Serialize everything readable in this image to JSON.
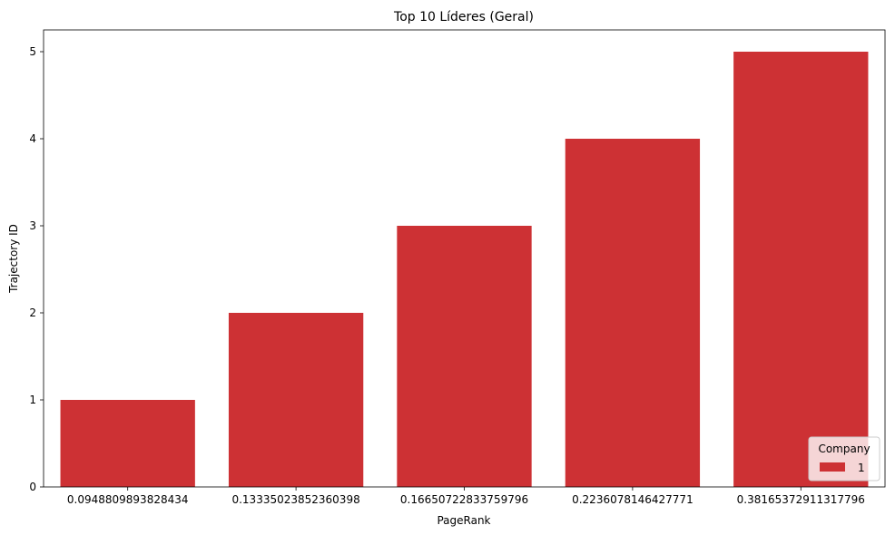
{
  "chart_data": {
    "type": "bar",
    "title": "Top 10 Líderes (Geral)",
    "xlabel": "PageRank",
    "ylabel": "Trajectory ID",
    "categories": [
      "0.0948809893828434",
      "0.13335023852360398",
      "0.16650722833759796",
      "0.2236078146427771",
      "0.38165372911317796"
    ],
    "series": [
      {
        "name": "1",
        "values": [
          1,
          2,
          3,
          4,
          5
        ]
      }
    ],
    "ylim": [
      0,
      5.25
    ],
    "yticks": [
      0,
      1,
      2,
      3,
      4,
      5
    ],
    "grid": false,
    "legend": {
      "title": "Company",
      "placement": "lower-right"
    },
    "colors": {
      "bar": "#cd3134",
      "axis": "#000000"
    }
  }
}
